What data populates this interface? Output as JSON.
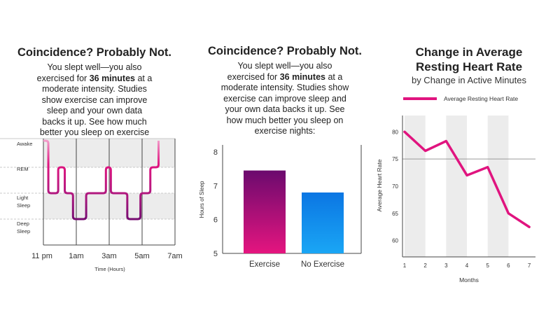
{
  "colors": {
    "accent": "#e0147f",
    "exercise_top": "#6b0a6e",
    "exercise_bottom": "#e5157f",
    "noexercise_top": "#0b76e3",
    "noexercise_bottom": "#1aa6f5",
    "band": "#ececec",
    "hypnogram_dark": "#6b0a6e"
  },
  "sleep_panel": {
    "title": "Coincidence? Probably Not.",
    "text_before": "You slept well—you also exercised for ",
    "text_bold": "36 minutes",
    "text_after": " at a moderate intensity. Studies show exercise can improve sleep and your own data backs it up. See how much better you sleep on exercise nights:",
    "xlabel": "Time (Hours)"
  },
  "bars_panel": {
    "title": "Coincidence? Probably Not.",
    "text_before": "You slept well—you also exercised for ",
    "text_bold": "36 minutes",
    "text_after": " at a moderate intensity. Studies show exercise can improve sleep and your own data backs it up. See how much better you sleep on exercise nights:"
  },
  "hr_panel": {
    "title": "Change in Average Resting Heart Rate",
    "subtitle": "by Change in Active Minutes"
  },
  "chart_data": [
    {
      "type": "line",
      "chart": "sleep-stages",
      "x_ticks": [
        "11 pm",
        "1am",
        "3am",
        "5am",
        "7am"
      ],
      "y_categories": [
        "Awake",
        "REM",
        "Light Sleep",
        "Deep Sleep"
      ],
      "xlabel": "Time (Hours)",
      "x": [
        23.0,
        23.3,
        23.3,
        23.9,
        23.9,
        24.3,
        24.3,
        24.8,
        24.8,
        25.6,
        25.6,
        26.8,
        26.8,
        27.1,
        27.1,
        28.1,
        28.1,
        28.9,
        28.9,
        29.5,
        29.5,
        30.0,
        30.0
      ],
      "y_stage_index": [
        0,
        0,
        2,
        2,
        1,
        1,
        2,
        2,
        3,
        3,
        2,
        2,
        1,
        1,
        2,
        2,
        3,
        3,
        2,
        2,
        1,
        1,
        0
      ],
      "grid": true
    },
    {
      "type": "bar",
      "chart": "hours-of-sleep",
      "categories": [
        "Exercise",
        "No Exercise"
      ],
      "values": [
        7.45,
        6.8
      ],
      "ylabel": "Hours of Sleep",
      "ylim": [
        5,
        8
      ],
      "y_ticks": [
        5,
        6,
        7,
        8
      ]
    },
    {
      "type": "line",
      "chart": "resting-heart-rate",
      "legend": "Average Resting Heart Rate",
      "legend_position": "top",
      "x": [
        1,
        2,
        3,
        4,
        5,
        6,
        7
      ],
      "values": [
        80,
        76.5,
        78.3,
        72,
        73.5,
        65,
        62.5
      ],
      "xlabel": "Months",
      "ylabel": "Average Heart Rate",
      "y_ticks": [
        60,
        65,
        70,
        75,
        80
      ],
      "ylim": [
        57,
        83
      ],
      "xlim": [
        0.9,
        7.3
      ],
      "reference_line": 75,
      "shaded_bands": [
        [
          1,
          2
        ],
        [
          3,
          4
        ],
        [
          5,
          6
        ]
      ]
    }
  ]
}
